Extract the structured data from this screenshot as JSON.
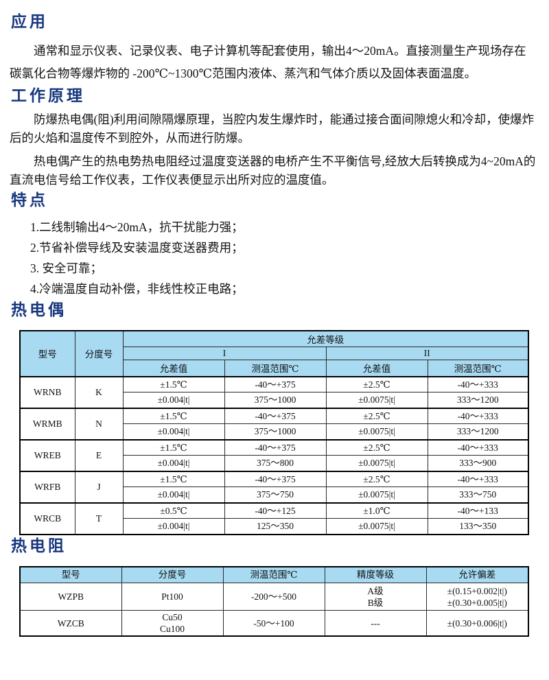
{
  "colors": {
    "heading": "#17377E",
    "table_header_bg": "#A8DAF2",
    "border": "#000000"
  },
  "sections": {
    "application": {
      "title": "应用",
      "paragraph": "通常和显示仪表、记录仪表、电子计算机等配套使用，输出4～20mA。直接测量生产现场存在碳氯化合物等爆炸物的 -200℃~1300℃范围内液体、蒸汽和气体介质以及固体表面温度。"
    },
    "principle": {
      "title": "工作原理",
      "paragraphs": [
        "防爆热电偶(阻)利用间隙隔爆原理，当腔内发生爆炸时，能通过接合面间隙熄火和冷却，使爆炸后的火焰和温度传不到腔外，从而进行防爆。",
        "热电偶产生的热电势热电阻经过温度变送器的电桥产生不平衡信号,经放大后转换成为4~20mA的直流电信号给工作仪表，工作仪表便显示出所对应的温度值。"
      ]
    },
    "features": {
      "title": "特点",
      "items": [
        "1.二线制输出4～20mA，抗干扰能力强；",
        "2.节省补偿导线及安装温度变送器费用；",
        "3. 安全可靠；",
        "4.冷端温度自动补偿，非线性校正电路；"
      ]
    },
    "thermocouple": {
      "title": "热电偶",
      "table": {
        "headers": {
          "model": "型号",
          "graduation": "分度号",
          "tolerance_class": "允差等级",
          "class1": "I",
          "class2": "II",
          "tolerance_value": "允差值",
          "temp_range": "测温范围℃"
        },
        "rows": [
          {
            "model": "WRNB",
            "graduation": "K",
            "sub": [
              [
                "±1.5℃",
                "-40～+375",
                "±2.5℃",
                "-40～+333"
              ],
              [
                "±0.004|t|",
                "375～1000",
                "±0.0075|t|",
                "333～1200"
              ]
            ]
          },
          {
            "model": "WRMB",
            "graduation": "N",
            "sub": [
              [
                "±1.5℃",
                "-40～+375",
                "±2.5℃",
                "-40～+333"
              ],
              [
                "±0.004|t|",
                "375～1000",
                "±0.0075|t|",
                "333～1200"
              ]
            ]
          },
          {
            "model": "WREB",
            "graduation": "E",
            "sub": [
              [
                "±1.5℃",
                "-40～+375",
                "±2.5℃",
                "-40～+333"
              ],
              [
                "±0.004|t|",
                "375～800",
                "±0.0075|t|",
                "333～900"
              ]
            ]
          },
          {
            "model": "WRFB",
            "graduation": "J",
            "sub": [
              [
                "±1.5℃",
                "-40～+375",
                "±2.5℃",
                "-40～+333"
              ],
              [
                "±0.004|t|",
                "375～750",
                "±0.0075|t|",
                "333～750"
              ]
            ]
          },
          {
            "model": "WRCB",
            "graduation": "T",
            "sub": [
              [
                "±0.5℃",
                "-40～+125",
                "±1.0℃",
                "-40～+133"
              ],
              [
                "±0.004|t|",
                "125～350",
                "±0.0075|t|",
                "133～350"
              ]
            ]
          }
        ]
      }
    },
    "rtd": {
      "title": "热电阻",
      "table": {
        "headers": [
          "型号",
          "分度号",
          "测温范围℃",
          "精度等级",
          "允许偏差"
        ],
        "rows": [
          {
            "cells": [
              [
                "WZPB"
              ],
              [
                "Pt100"
              ],
              [
                "-200～+500"
              ],
              [
                "A级",
                "B级"
              ],
              [
                "±(0.15+0.002|t|)",
                "±(0.30+0.005|t|)"
              ]
            ]
          },
          {
            "cells": [
              [
                "WZCB"
              ],
              [
                "Cu50",
                "Cu100"
              ],
              [
                "-50～+100"
              ],
              [
                "---"
              ],
              [
                "±(0.30+0.006|t|)"
              ]
            ]
          }
        ]
      }
    }
  }
}
